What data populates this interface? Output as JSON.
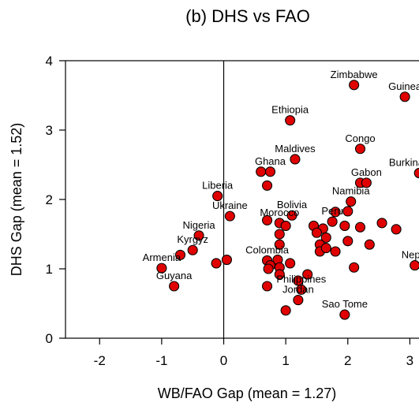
{
  "chart_data": {
    "type": "scatter",
    "title": "(b) DHS vs FAO",
    "xlabel": "WB/FAO Gap (mean = 1.27)",
    "ylabel": "DHS Gap (mean = 1.52)",
    "xlim": [
      -2.55,
      3.3
    ],
    "ylim": [
      0,
      4
    ],
    "xticks": [
      -2,
      -1,
      0,
      1,
      2,
      3
    ],
    "yticks": [
      0,
      1,
      2,
      3,
      4
    ],
    "vline_at": 0,
    "marker_color": "#e00000",
    "marker_edge": "#000000",
    "points": [
      {
        "x": 2.1,
        "y": 3.65,
        "label": "Zimbabwe"
      },
      {
        "x": 2.92,
        "y": 3.48,
        "label": "Guinea"
      },
      {
        "x": 1.07,
        "y": 3.14,
        "label": "Ethiopia"
      },
      {
        "x": 2.2,
        "y": 2.73,
        "label": "Congo"
      },
      {
        "x": 1.15,
        "y": 2.58,
        "label": "Maldives"
      },
      {
        "x": 0.6,
        "y": 2.4,
        "label": ""
      },
      {
        "x": 0.75,
        "y": 2.4,
        "label": "Ghana"
      },
      {
        "x": 3.15,
        "y": 2.38,
        "label": "Burkina Faso"
      },
      {
        "x": 2.2,
        "y": 2.24,
        "label": ""
      },
      {
        "x": 2.3,
        "y": 2.24,
        "label": "Gabon"
      },
      {
        "x": 0.7,
        "y": 2.2,
        "label": ""
      },
      {
        "x": -0.1,
        "y": 2.05,
        "label": "Liberia"
      },
      {
        "x": 2.05,
        "y": 1.97,
        "label": "Namibia"
      },
      {
        "x": 0.1,
        "y": 1.76,
        "label": "Ukraine"
      },
      {
        "x": 1.1,
        "y": 1.77,
        "label": "Bolivia"
      },
      {
        "x": 0.7,
        "y": 1.7,
        "label": ""
      },
      {
        "x": 0.9,
        "y": 1.66,
        "label": "Morocco"
      },
      {
        "x": 1.0,
        "y": 1.62,
        "label": ""
      },
      {
        "x": 1.45,
        "y": 1.62,
        "label": ""
      },
      {
        "x": 1.75,
        "y": 1.68,
        "label": "Peru"
      },
      {
        "x": 1.6,
        "y": 1.58,
        "label": ""
      },
      {
        "x": 2.0,
        "y": 1.83,
        "label": ""
      },
      {
        "x": 1.8,
        "y": 1.82,
        "label": ""
      },
      {
        "x": 1.95,
        "y": 1.62,
        "label": ""
      },
      {
        "x": 2.2,
        "y": 1.6,
        "label": ""
      },
      {
        "x": 2.55,
        "y": 1.66,
        "label": ""
      },
      {
        "x": 2.78,
        "y": 1.57,
        "label": ""
      },
      {
        "x": 0.9,
        "y": 1.5,
        "label": ""
      },
      {
        "x": 1.5,
        "y": 1.52,
        "label": ""
      },
      {
        "x": 1.65,
        "y": 1.45,
        "label": ""
      },
      {
        "x": -0.4,
        "y": 1.48,
        "label": "Nigeria"
      },
      {
        "x": 2.0,
        "y": 1.4,
        "label": ""
      },
      {
        "x": 2.35,
        "y": 1.35,
        "label": ""
      },
      {
        "x": 0.9,
        "y": 1.35,
        "label": ""
      },
      {
        "x": 1.55,
        "y": 1.35,
        "label": ""
      },
      {
        "x": 1.55,
        "y": 1.25,
        "label": ""
      },
      {
        "x": 1.65,
        "y": 1.3,
        "label": ""
      },
      {
        "x": 1.8,
        "y": 1.25,
        "label": ""
      },
      {
        "x": -0.5,
        "y": 1.27,
        "label": "Kyrgyz"
      },
      {
        "x": -0.7,
        "y": 1.2,
        "label": ""
      },
      {
        "x": 0.05,
        "y": 1.13,
        "label": ""
      },
      {
        "x": 0.7,
        "y": 1.12,
        "label": "Colombia"
      },
      {
        "x": 0.87,
        "y": 1.13,
        "label": ""
      },
      {
        "x": 0.75,
        "y": 1.05,
        "label": ""
      },
      {
        "x": 1.07,
        "y": 1.08,
        "label": ""
      },
      {
        "x": -0.12,
        "y": 1.08,
        "label": ""
      },
      {
        "x": 0.72,
        "y": 1.0,
        "label": ""
      },
      {
        "x": 0.9,
        "y": 1.02,
        "label": ""
      },
      {
        "x": 2.1,
        "y": 1.02,
        "label": ""
      },
      {
        "x": 3.08,
        "y": 1.05,
        "label": "Nepal"
      },
      {
        "x": -1.0,
        "y": 1.01,
        "label": "Armenia"
      },
      {
        "x": 0.9,
        "y": 0.92,
        "label": ""
      },
      {
        "x": 1.35,
        "y": 0.92,
        "label": ""
      },
      {
        "x": 1.2,
        "y": 0.83,
        "label": ""
      },
      {
        "x": -0.8,
        "y": 0.75,
        "label": "Guyana"
      },
      {
        "x": 0.7,
        "y": 0.75,
        "label": ""
      },
      {
        "x": 1.25,
        "y": 0.7,
        "label": "Philippines"
      },
      {
        "x": 1.2,
        "y": 0.55,
        "label": "Jordan"
      },
      {
        "x": 1.0,
        "y": 0.4,
        "label": ""
      },
      {
        "x": 1.95,
        "y": 0.34,
        "label": "Sao Tome"
      }
    ]
  }
}
